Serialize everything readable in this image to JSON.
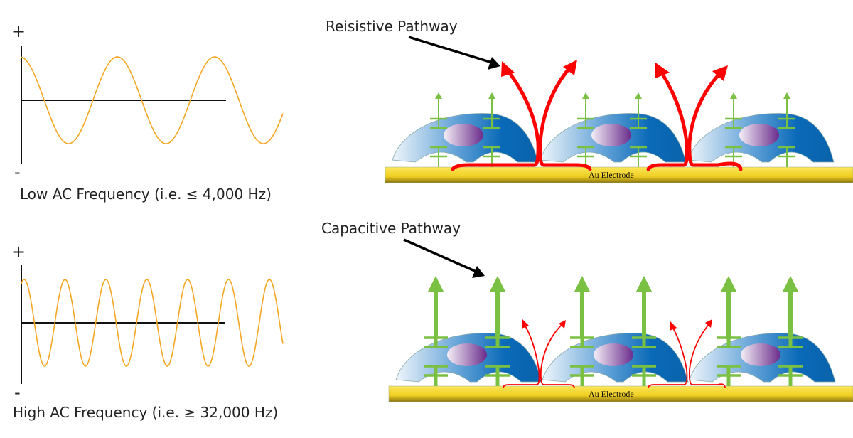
{
  "low_panel": {
    "plus": "+",
    "minus": "-",
    "caption": "Low AC Frequency (i.e. ≤ 4,000 Hz)",
    "pathway_label": "Reisistive Pathway",
    "electrode_label": "Au Electrode"
  },
  "high_panel": {
    "plus": "+",
    "minus": "-",
    "caption": "High AC Frequency (i.e. ≥ 32,000 Hz)",
    "pathway_label": "Capacitive Pathway",
    "electrode_label": "Au Electrode"
  },
  "colors": {
    "wave": "#f5a623",
    "current_arrow": "#ff0000",
    "capacitor": "#7ac143",
    "electrode": "#f2d230",
    "cell": "#0a6ab8",
    "nucleus": "#6a2c8c"
  }
}
